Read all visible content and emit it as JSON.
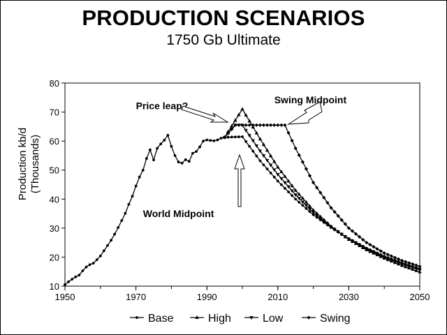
{
  "chart_data": {
    "type": "line",
    "title": "PRODUCTION SCENARIOS",
    "subtitle": "1750 Gb Ultimate",
    "ylabel_line1": "Production kb/d",
    "ylabel_line2": "(Thousands)",
    "xlabel": "",
    "xlim": [
      1950,
      2050
    ],
    "ylim": [
      10,
      80
    ],
    "xticks": [
      1950,
      1970,
      1990,
      2010,
      2030,
      2050
    ],
    "yticks": [
      10,
      20,
      30,
      40,
      50,
      60,
      70,
      80
    ],
    "legend_position": "bottom",
    "historical": {
      "x": [
        1950,
        1951,
        1952,
        1953,
        1954,
        1955,
        1956,
        1957,
        1958,
        1959,
        1960,
        1961,
        1962,
        1963,
        1964,
        1965,
        1966,
        1967,
        1968,
        1969,
        1970,
        1971,
        1972,
        1973,
        1974,
        1975,
        1976,
        1977,
        1978,
        1979,
        1980,
        1981,
        1982,
        1983,
        1984,
        1985,
        1986,
        1987,
        1988,
        1989,
        1990,
        1991,
        1992,
        1993,
        1994,
        1995
      ],
      "y": [
        10.5,
        11.5,
        12.4,
        13.2,
        13.8,
        15.3,
        16.6,
        17.4,
        17.9,
        19.1,
        20.4,
        22.2,
        24.0,
        25.8,
        27.9,
        30.2,
        32.6,
        35.1,
        38.2,
        41.0,
        44.5,
        47.6,
        50.0,
        54.0,
        57.0,
        53.5,
        57.5,
        59.0,
        60.3,
        62.0,
        58.2,
        55.0,
        52.8,
        52.4,
        53.6,
        53.0,
        55.8,
        56.4,
        58.0,
        60.0,
        60.4,
        60.2,
        60.1,
        60.4,
        61.0,
        61.3
      ]
    },
    "series": [
      {
        "name": "Base",
        "marker": "dot",
        "x": [
          1995,
          2000,
          2005,
          2010,
          2015,
          2020,
          2025,
          2030,
          2035,
          2040,
          2045,
          2050
        ],
        "y": [
          61.3,
          61.5,
          53.2,
          46.2,
          40.0,
          34.6,
          30.2,
          26.4,
          23.1,
          20.3,
          18.0,
          16.0
        ]
      },
      {
        "name": "High",
        "marker": "up-triangle",
        "x": [
          1995,
          2000,
          2005,
          2010,
          2015,
          2020,
          2025,
          2030,
          2035,
          2040,
          2045,
          2050
        ],
        "y": [
          61.3,
          71.0,
          60.7,
          51.0,
          43.0,
          36.2,
          30.6,
          26.1,
          22.5,
          19.6,
          17.1,
          14.9
        ]
      },
      {
        "name": "Low",
        "marker": "down-triangle",
        "x": [
          1995,
          1998,
          2000,
          2005,
          2010,
          2015,
          2020,
          2025,
          2030,
          2035,
          2040,
          2045,
          2050
        ],
        "y": [
          61.3,
          65.5,
          65.5,
          56.6,
          48.5,
          41.5,
          35.4,
          30.4,
          26.2,
          22.8,
          20.0,
          17.6,
          15.6
        ]
      },
      {
        "name": "Swing",
        "marker": "diamond",
        "x": [
          1995,
          1998,
          2000,
          2005,
          2010,
          2012,
          2015,
          2020,
          2025,
          2030,
          2035,
          2040,
          2045,
          2050
        ],
        "y": [
          61.3,
          65.5,
          65.5,
          65.5,
          65.5,
          65.5,
          57.5,
          45.7,
          37.0,
          30.0,
          25.0,
          21.4,
          18.8,
          16.8
        ]
      }
    ],
    "annotations": [
      {
        "text": "Price leap?",
        "x": 1970,
        "y": 71
      },
      {
        "text": "Swing Midpoint",
        "x": 2009,
        "y": 73
      },
      {
        "text": "World Midpoint",
        "x": 1972,
        "y": 33.8
      }
    ]
  }
}
